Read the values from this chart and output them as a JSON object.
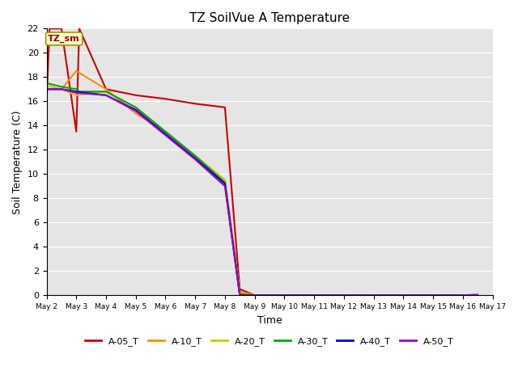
{
  "title": "TZ SoilVue A Temperature",
  "xlabel": "Time",
  "ylabel": "Soil Temperature (C)",
  "annotation_text": "TZ_sm",
  "ylim": [
    0,
    22
  ],
  "series": {
    "A-05_T": {
      "color": "#cc0000",
      "x": [
        2.0,
        2.1,
        2.5,
        3.0,
        3.1,
        4.0,
        5.0,
        6.0,
        7.0,
        8.0,
        8.5,
        9.0,
        10.0,
        11.0,
        12.0,
        13.0,
        14.0,
        15.0,
        16.0
      ],
      "y": [
        15.8,
        22.0,
        22.0,
        13.5,
        22.0,
        17.0,
        16.5,
        16.2,
        15.8,
        15.5,
        0.5,
        0.0,
        0.0,
        0.0,
        0.0,
        0.0,
        0.0,
        0.0,
        0.0
      ]
    },
    "A-10_T": {
      "color": "#ff8c00",
      "x": [
        2.0,
        2.5,
        3.0,
        4.0,
        5.0,
        6.0,
        7.0,
        8.0,
        8.5,
        9.0,
        10.0,
        11.0,
        12.0,
        13.0,
        14.0,
        15.0,
        16.0
      ],
      "y": [
        17.0,
        17.0,
        18.5,
        17.0,
        15.0,
        13.5,
        11.5,
        9.5,
        0.3,
        0.0,
        0.0,
        0.0,
        0.0,
        0.0,
        0.0,
        0.0,
        0.0
      ]
    },
    "A-20_T": {
      "color": "#cccc00",
      "x": [
        2.0,
        2.5,
        3.0,
        4.0,
        5.0,
        6.0,
        7.0,
        8.0,
        8.5,
        9.0,
        10.0,
        11.0,
        12.0,
        13.0,
        14.0,
        15.0,
        16.0
      ],
      "y": [
        17.3,
        17.0,
        16.5,
        16.8,
        15.5,
        13.5,
        11.5,
        9.5,
        0.2,
        0.0,
        0.0,
        0.0,
        0.0,
        0.0,
        0.0,
        0.0,
        0.0
      ]
    },
    "A-30_T": {
      "color": "#00aa00",
      "x": [
        2.0,
        2.5,
        3.0,
        3.1,
        4.0,
        5.0,
        6.0,
        7.0,
        8.0,
        8.5,
        9.0,
        10.0,
        11.0,
        12.0,
        13.0,
        14.0,
        15.0,
        16.0
      ],
      "y": [
        17.5,
        17.2,
        17.0,
        16.8,
        16.8,
        15.5,
        13.5,
        11.5,
        9.3,
        0.1,
        0.0,
        0.0,
        0.0,
        0.0,
        0.0,
        0.0,
        0.0,
        0.0
      ]
    },
    "A-40_T": {
      "color": "#0000cc",
      "x": [
        2.0,
        2.5,
        3.0,
        4.0,
        5.0,
        6.0,
        7.0,
        8.0,
        8.5,
        9.0,
        10.0,
        11.0,
        12.0,
        13.0,
        14.0,
        15.0,
        16.0
      ],
      "y": [
        17.0,
        17.0,
        16.8,
        16.5,
        15.3,
        13.3,
        11.3,
        9.2,
        0.0,
        0.0,
        0.0,
        0.0,
        0.0,
        0.0,
        0.0,
        0.0,
        0.0
      ]
    },
    "A-50_T": {
      "color": "#9900cc",
      "x": [
        2.0,
        2.5,
        3.0,
        4.0,
        5.0,
        6.0,
        7.0,
        8.0,
        8.5,
        9.0,
        10.0,
        11.0,
        12.0,
        13.0,
        14.0,
        15.0,
        16.0,
        16.5
      ],
      "y": [
        17.0,
        17.0,
        16.7,
        16.5,
        15.2,
        13.2,
        11.2,
        9.0,
        0.0,
        0.0,
        0.0,
        0.0,
        0.0,
        0.0,
        0.0,
        0.0,
        0.0,
        0.05
      ]
    }
  },
  "xtick_positions": [
    2,
    3,
    4,
    5,
    6,
    7,
    8,
    9,
    10,
    11,
    12,
    13,
    14,
    15,
    16,
    17
  ],
  "xtick_labels": [
    "May 2",
    "May 3",
    "May 4",
    "May 5",
    "May 6",
    "May 7",
    "May 8",
    "May 9",
    "May 10",
    "May 11",
    "May 12",
    "May 13",
    "May 14",
    "May 15",
    "May 16",
    "May 17"
  ],
  "ytick_values": [
    0,
    2,
    4,
    6,
    8,
    10,
    12,
    14,
    16,
    18,
    20,
    22
  ],
  "bg_color": "#e5e5e5",
  "grid_color": "#ffffff",
  "linewidth": 1.5,
  "legend_order": [
    "A-05_T",
    "A-10_T",
    "A-20_T",
    "A-30_T",
    "A-40_T",
    "A-50_T"
  ]
}
